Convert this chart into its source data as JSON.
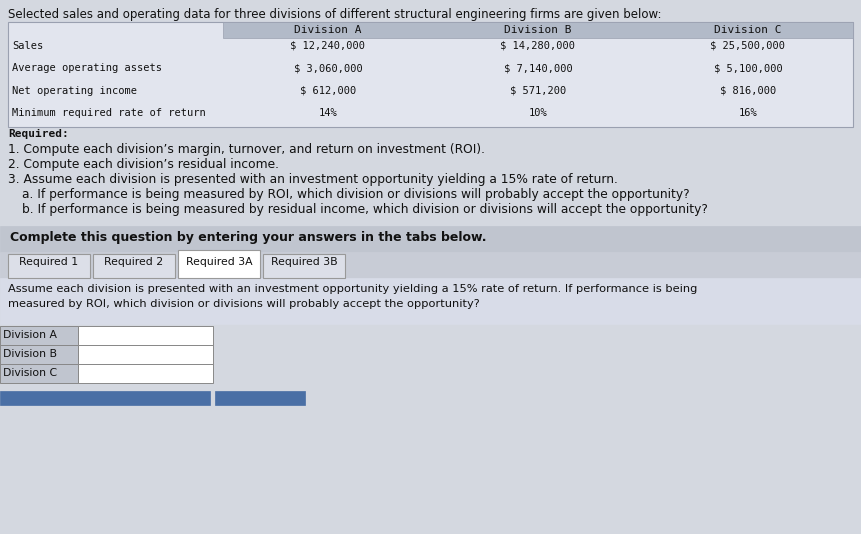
{
  "title": "Selected sales and operating data for three divisions of different structural engineering firms are given below:",
  "table_headers": [
    "Division A",
    "Division B",
    "Division C"
  ],
  "table_rows": [
    [
      "Sales",
      "$ 12,240,000",
      "$ 14,280,000",
      "$ 25,500,000"
    ],
    [
      "Average operating assets",
      "$ 3,060,000",
      "$ 7,140,000",
      "$ 5,100,000"
    ],
    [
      "Net operating income",
      "$ 612,000",
      "$ 571,200",
      "$ 816,000"
    ],
    [
      "Minimum required rate of return",
      "14%",
      "10%",
      "16%"
    ]
  ],
  "required_label": "Required:",
  "numbered_items": [
    "1. Compute each division’s margin, turnover, and return on investment (ROI).",
    "2. Compute each division’s residual income.",
    "3. Assume each division is presented with an investment opportunity yielding a 15% rate of return.",
    "a. If performance is being measured by ROI, which division or divisions will probably accept the opportunity?",
    "b. If performance is being measured by residual income, which division or divisions will accept the opportunity?"
  ],
  "complete_text": "Complete this question by entering your answers in the tabs below.",
  "tabs": [
    "Required 1",
    "Required 2",
    "Required 3A",
    "Required 3B"
  ],
  "active_tab_index": 2,
  "assumption_line1": "Assume each division is presented with an investment opportunity yielding a 15% rate of return. If performance is being",
  "assumption_line2": "measured by ROI, which division or divisions will probably accept the opportunity?",
  "division_rows": [
    "Division A",
    "Division B",
    "Division C"
  ],
  "bg_color": "#cdd0d8",
  "page_bg": "#d4d8e0",
  "table_outer_bg": "#bfc5d0",
  "table_header_bg": "#b2bac8",
  "table_body_bg": "#e2e5ee",
  "complete_bar_bg": "#c0c5cf",
  "tabs_area_bg": "#c8ccd6",
  "active_tab_bg": "#ffffff",
  "inactive_tab_bg": "#dcdfe8",
  "assumption_bg": "#d8dce8",
  "input_label_bg": "#c0c5cf",
  "input_box_bg": "#ffffff",
  "bottom_btn_color": "#4a6fa5"
}
